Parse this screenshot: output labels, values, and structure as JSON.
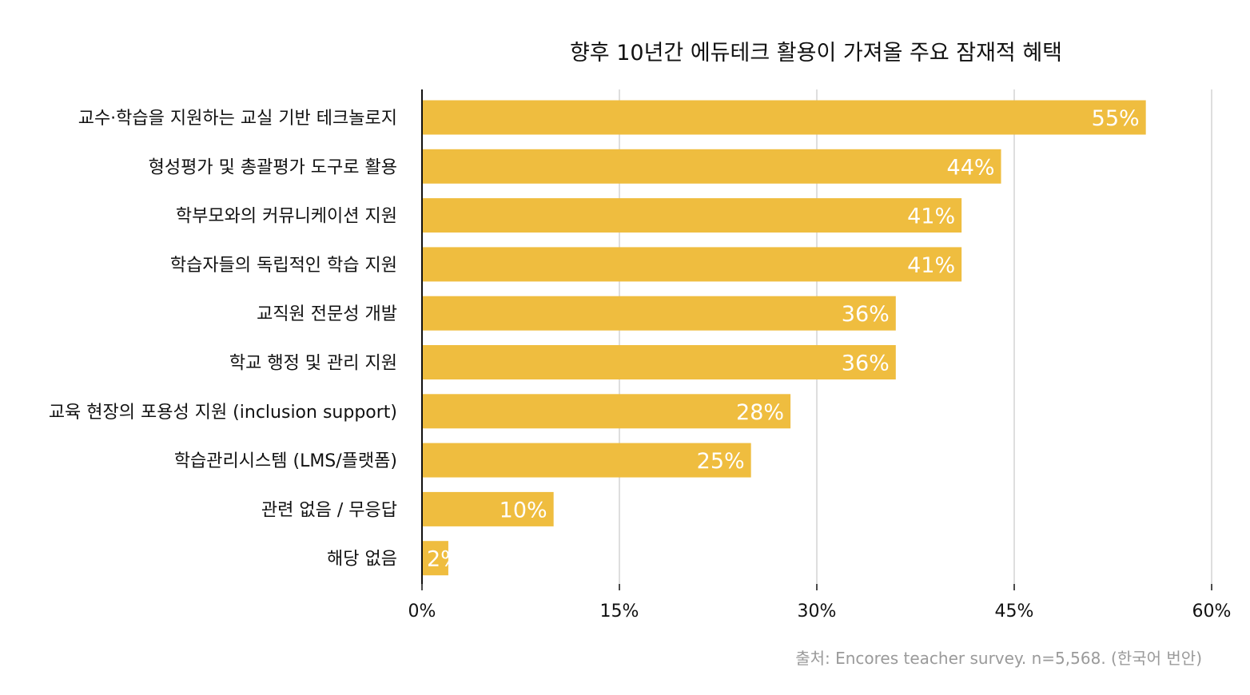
{
  "chart_data": {
    "type": "bar",
    "orientation": "horizontal",
    "title": "향후 10년간 에듀테크 활용이 가져올 주요 잠재적 혜택",
    "categories": [
      "교수·학습을 지원하는 교실 기반 테크놀로지",
      "형성평가 및 총괄평가 도구로 활용",
      "학부모와의 커뮤니케이션 지원",
      "학습자들의 독립적인 학습 지원",
      "교직원 전문성 개발",
      "학교 행정 및 관리 지원",
      "교육 현장의 포용성 지원 (inclusion support)",
      "학습관리시스템 (LMS/플랫폼)",
      "관련 없음 / 무응답",
      "해당 없음"
    ],
    "values": [
      55,
      44,
      41,
      41,
      36,
      36,
      28,
      25,
      10,
      2
    ],
    "value_labels": [
      "55%",
      "44%",
      "41%",
      "41%",
      "36%",
      "36%",
      "28%",
      "25%",
      "10%",
      "2%"
    ],
    "xlim": [
      0,
      60
    ],
    "xticks": [
      0,
      15,
      30,
      45,
      60
    ],
    "xtick_labels": [
      "0%",
      "15%",
      "30%",
      "45%",
      "60%"
    ],
    "grid": true,
    "bar_color": "#efbd3f",
    "source": "출처: Encores teacher survey. n=5,568. (한국어 번안)"
  }
}
